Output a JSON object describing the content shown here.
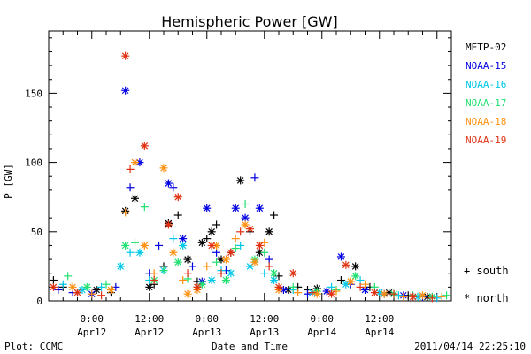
{
  "chart_data": {
    "type": "scatter",
    "title": "Hemispheric Power [GW]",
    "xlabel": "Date and Time",
    "ylabel": "P [GW]",
    "ylim": [
      0,
      195
    ],
    "xlim": [
      -9,
      75
    ],
    "yticks": [
      0,
      50,
      100,
      150
    ],
    "xticks": [
      {
        "x": 0,
        "time": "0:00",
        "date": "Apr12"
      },
      {
        "x": 12,
        "time": "12:00",
        "date": "Apr12"
      },
      {
        "x": 24,
        "time": "0:00",
        "date": "Apr13"
      },
      {
        "x": 36,
        "time": "12:00",
        "date": "Apr13"
      },
      {
        "x": 48,
        "time": "0:00",
        "date": "Apr14"
      },
      {
        "x": 60,
        "time": "12:00",
        "date": "Apr14"
      }
    ],
    "x_unit": "hours from 2011-04-12 00:00",
    "legend_position": "right",
    "marker_key": [
      {
        "symbol": "+",
        "label": "south"
      },
      {
        "symbol": "*",
        "label": "north"
      }
    ],
    "series": [
      {
        "name": "METP-02",
        "color": "#000000",
        "points": [
          {
            "x": -8,
            "y": 15,
            "m": "+"
          },
          {
            "x": -6,
            "y": 10,
            "m": "+"
          },
          {
            "x": -3,
            "y": 6,
            "m": "+"
          },
          {
            "x": 1,
            "y": 8,
            "m": "*"
          },
          {
            "x": 4,
            "y": 6,
            "m": "+"
          },
          {
            "x": 7,
            "y": 65,
            "m": "*"
          },
          {
            "x": 9,
            "y": 74,
            "m": "*"
          },
          {
            "x": 12,
            "y": 10,
            "m": "*"
          },
          {
            "x": 13,
            "y": 12,
            "m": "+"
          },
          {
            "x": 15,
            "y": 25,
            "m": "+"
          },
          {
            "x": 16,
            "y": 56,
            "m": "*"
          },
          {
            "x": 18,
            "y": 62,
            "m": "+"
          },
          {
            "x": 20,
            "y": 30,
            "m": "*"
          },
          {
            "x": 22,
            "y": 14,
            "m": "+"
          },
          {
            "x": 23,
            "y": 42,
            "m": "*"
          },
          {
            "x": 24,
            "y": 45,
            "m": "+"
          },
          {
            "x": 25,
            "y": 50,
            "m": "*"
          },
          {
            "x": 26,
            "y": 55,
            "m": "+"
          },
          {
            "x": 27,
            "y": 30,
            "m": "*"
          },
          {
            "x": 29,
            "y": 35,
            "m": "+"
          },
          {
            "x": 31,
            "y": 87,
            "m": "*"
          },
          {
            "x": 33,
            "y": 50,
            "m": "+"
          },
          {
            "x": 35,
            "y": 35,
            "m": "*"
          },
          {
            "x": 37,
            "y": 50,
            "m": "*"
          },
          {
            "x": 38,
            "y": 62,
            "m": "+"
          },
          {
            "x": 39,
            "y": 18,
            "m": "+"
          },
          {
            "x": 41,
            "y": 8,
            "m": "*"
          },
          {
            "x": 43,
            "y": 10,
            "m": "+"
          },
          {
            "x": 45,
            "y": 8,
            "m": "+"
          },
          {
            "x": 47,
            "y": 9,
            "m": "*"
          },
          {
            "x": 52,
            "y": 15,
            "m": "+"
          },
          {
            "x": 55,
            "y": 25,
            "m": "*"
          },
          {
            "x": 58,
            "y": 10,
            "m": "+"
          },
          {
            "x": 62,
            "y": 6,
            "m": "*"
          },
          {
            "x": 66,
            "y": 4,
            "m": "+"
          },
          {
            "x": 70,
            "y": 3,
            "m": "*"
          }
        ]
      },
      {
        "name": "NOAA-15",
        "color": "#0000e0",
        "points": [
          {
            "x": -7,
            "y": 8,
            "m": "+"
          },
          {
            "x": -4,
            "y": 6,
            "m": "+"
          },
          {
            "x": 0,
            "y": 5,
            "m": "*"
          },
          {
            "x": 5,
            "y": 10,
            "m": "+"
          },
          {
            "x": 7,
            "y": 152,
            "m": "*"
          },
          {
            "x": 8,
            "y": 82,
            "m": "+"
          },
          {
            "x": 10,
            "y": 100,
            "m": "*"
          },
          {
            "x": 12,
            "y": 20,
            "m": "+"
          },
          {
            "x": 14,
            "y": 40,
            "m": "+"
          },
          {
            "x": 16,
            "y": 85,
            "m": "*"
          },
          {
            "x": 17,
            "y": 82,
            "m": "+"
          },
          {
            "x": 19,
            "y": 45,
            "m": "*"
          },
          {
            "x": 21,
            "y": 25,
            "m": "+"
          },
          {
            "x": 23,
            "y": 14,
            "m": "*"
          },
          {
            "x": 24,
            "y": 67,
            "m": "*"
          },
          {
            "x": 26,
            "y": 35,
            "m": "+"
          },
          {
            "x": 28,
            "y": 22,
            "m": "+"
          },
          {
            "x": 30,
            "y": 67,
            "m": "*"
          },
          {
            "x": 32,
            "y": 60,
            "m": "*"
          },
          {
            "x": 34,
            "y": 89,
            "m": "+"
          },
          {
            "x": 35,
            "y": 67,
            "m": "*"
          },
          {
            "x": 37,
            "y": 30,
            "m": "+"
          },
          {
            "x": 40,
            "y": 8,
            "m": "*"
          },
          {
            "x": 45,
            "y": 5,
            "m": "+"
          },
          {
            "x": 49,
            "y": 7,
            "m": "*"
          },
          {
            "x": 52,
            "y": 32,
            "m": "*"
          },
          {
            "x": 54,
            "y": 12,
            "m": "+"
          },
          {
            "x": 57,
            "y": 8,
            "m": "*"
          },
          {
            "x": 61,
            "y": 5,
            "m": "+"
          },
          {
            "x": 65,
            "y": 4,
            "m": "*"
          },
          {
            "x": 69,
            "y": 3,
            "m": "+"
          }
        ]
      },
      {
        "name": "NOAA-16",
        "color": "#00c8e8",
        "points": [
          {
            "x": -6,
            "y": 12,
            "m": "+"
          },
          {
            "x": -2,
            "y": 8,
            "m": "*"
          },
          {
            "x": 2,
            "y": 10,
            "m": "+"
          },
          {
            "x": 6,
            "y": 25,
            "m": "*"
          },
          {
            "x": 8,
            "y": 35,
            "m": "+"
          },
          {
            "x": 10,
            "y": 35,
            "m": "*"
          },
          {
            "x": 12,
            "y": 15,
            "m": "+"
          },
          {
            "x": 15,
            "y": 22,
            "m": "*"
          },
          {
            "x": 17,
            "y": 45,
            "m": "+"
          },
          {
            "x": 19,
            "y": 40,
            "m": "*"
          },
          {
            "x": 22,
            "y": 10,
            "m": "+"
          },
          {
            "x": 25,
            "y": 15,
            "m": "*"
          },
          {
            "x": 27,
            "y": 22,
            "m": "+"
          },
          {
            "x": 29,
            "y": 20,
            "m": "*"
          },
          {
            "x": 31,
            "y": 40,
            "m": "+"
          },
          {
            "x": 33,
            "y": 25,
            "m": "*"
          },
          {
            "x": 36,
            "y": 20,
            "m": "+"
          },
          {
            "x": 38,
            "y": 15,
            "m": "*"
          },
          {
            "x": 42,
            "y": 8,
            "m": "+"
          },
          {
            "x": 46,
            "y": 6,
            "m": "*"
          },
          {
            "x": 50,
            "y": 10,
            "m": "+"
          },
          {
            "x": 53,
            "y": 12,
            "m": "*"
          },
          {
            "x": 56,
            "y": 15,
            "m": "+"
          },
          {
            "x": 60,
            "y": 6,
            "m": "*"
          },
          {
            "x": 64,
            "y": 4,
            "m": "+"
          },
          {
            "x": 68,
            "y": 3,
            "m": "*"
          },
          {
            "x": 72,
            "y": 2,
            "m": "+"
          }
        ]
      },
      {
        "name": "NOAA-17",
        "color": "#20e070",
        "points": [
          {
            "x": -5,
            "y": 18,
            "m": "+"
          },
          {
            "x": -1,
            "y": 10,
            "m": "*"
          },
          {
            "x": 3,
            "y": 12,
            "m": "+"
          },
          {
            "x": 7,
            "y": 40,
            "m": "*"
          },
          {
            "x": 9,
            "y": 42,
            "m": "+"
          },
          {
            "x": 11,
            "y": 68,
            "m": "+"
          },
          {
            "x": 13,
            "y": 15,
            "m": "*"
          },
          {
            "x": 15,
            "y": 22,
            "m": "+"
          },
          {
            "x": 18,
            "y": 28,
            "m": "*"
          },
          {
            "x": 20,
            "y": 16,
            "m": "+"
          },
          {
            "x": 23,
            "y": 12,
            "m": "*"
          },
          {
            "x": 26,
            "y": 28,
            "m": "+"
          },
          {
            "x": 28,
            "y": 15,
            "m": "*"
          },
          {
            "x": 30,
            "y": 38,
            "m": "+"
          },
          {
            "x": 32,
            "y": 70,
            "m": "+"
          },
          {
            "x": 34,
            "y": 30,
            "m": "*"
          },
          {
            "x": 36,
            "y": 35,
            "m": "+"
          },
          {
            "x": 38,
            "y": 20,
            "m": "*"
          },
          {
            "x": 42,
            "y": 10,
            "m": "+"
          },
          {
            "x": 47,
            "y": 7,
            "m": "*"
          },
          {
            "x": 51,
            "y": 8,
            "m": "+"
          },
          {
            "x": 55,
            "y": 18,
            "m": "*"
          },
          {
            "x": 59,
            "y": 10,
            "m": "+"
          },
          {
            "x": 63,
            "y": 5,
            "m": "*"
          },
          {
            "x": 67,
            "y": 4,
            "m": "+"
          },
          {
            "x": 71,
            "y": 3,
            "m": "*"
          },
          {
            "x": 74,
            "y": 4,
            "m": "+"
          }
        ]
      },
      {
        "name": "NOAA-18",
        "color": "#ff9010",
        "points": [
          {
            "x": -4,
            "y": 10,
            "m": "*"
          },
          {
            "x": 0,
            "y": 5,
            "m": "+"
          },
          {
            "x": 4,
            "y": 8,
            "m": "*"
          },
          {
            "x": 7,
            "y": 64,
            "m": "+"
          },
          {
            "x": 9,
            "y": 100,
            "m": "*"
          },
          {
            "x": 11,
            "y": 40,
            "m": "*"
          },
          {
            "x": 13,
            "y": 20,
            "m": "+"
          },
          {
            "x": 15,
            "y": 96,
            "m": "*"
          },
          {
            "x": 17,
            "y": 35,
            "m": "*"
          },
          {
            "x": 19,
            "y": 15,
            "m": "+"
          },
          {
            "x": 20,
            "y": 5,
            "m": "*"
          },
          {
            "x": 22,
            "y": 8,
            "m": "*"
          },
          {
            "x": 24,
            "y": 25,
            "m": "+"
          },
          {
            "x": 26,
            "y": 40,
            "m": "*"
          },
          {
            "x": 28,
            "y": 30,
            "m": "*"
          },
          {
            "x": 30,
            "y": 45,
            "m": "+"
          },
          {
            "x": 32,
            "y": 55,
            "m": "*"
          },
          {
            "x": 34,
            "y": 28,
            "m": "*"
          },
          {
            "x": 36,
            "y": 42,
            "m": "+"
          },
          {
            "x": 39,
            "y": 8,
            "m": "*"
          },
          {
            "x": 43,
            "y": 6,
            "m": "+"
          },
          {
            "x": 47,
            "y": 5,
            "m": "*"
          },
          {
            "x": 51,
            "y": 7,
            "m": "+"
          },
          {
            "x": 54,
            "y": 14,
            "m": "*"
          },
          {
            "x": 57,
            "y": 12,
            "m": "+"
          },
          {
            "x": 61,
            "y": 5,
            "m": "*"
          },
          {
            "x": 65,
            "y": 3,
            "m": "+"
          },
          {
            "x": 69,
            "y": 4,
            "m": "*"
          },
          {
            "x": 73,
            "y": 3,
            "m": "+"
          }
        ]
      },
      {
        "name": "NOAA-19",
        "color": "#e03010",
        "points": [
          {
            "x": -8,
            "y": 10,
            "m": "*"
          },
          {
            "x": -3,
            "y": 6,
            "m": "*"
          },
          {
            "x": 2,
            "y": 4,
            "m": "+"
          },
          {
            "x": 7,
            "y": 177,
            "m": "*"
          },
          {
            "x": 8,
            "y": 95,
            "m": "+"
          },
          {
            "x": 11,
            "y": 112,
            "m": "*"
          },
          {
            "x": 13,
            "y": 15,
            "m": "+"
          },
          {
            "x": 16,
            "y": 55,
            "m": "*"
          },
          {
            "x": 18,
            "y": 75,
            "m": "*"
          },
          {
            "x": 20,
            "y": 20,
            "m": "+"
          },
          {
            "x": 22,
            "y": 10,
            "m": "*"
          },
          {
            "x": 25,
            "y": 40,
            "m": "*"
          },
          {
            "x": 27,
            "y": 20,
            "m": "+"
          },
          {
            "x": 29,
            "y": 35,
            "m": "*"
          },
          {
            "x": 31,
            "y": 50,
            "m": "+"
          },
          {
            "x": 33,
            "y": 52,
            "m": "*"
          },
          {
            "x": 35,
            "y": 40,
            "m": "*"
          },
          {
            "x": 37,
            "y": 25,
            "m": "+"
          },
          {
            "x": 39,
            "y": 10,
            "m": "*"
          },
          {
            "x": 42,
            "y": 20,
            "m": "*"
          },
          {
            "x": 46,
            "y": 6,
            "m": "+"
          },
          {
            "x": 50,
            "y": 5,
            "m": "*"
          },
          {
            "x": 53,
            "y": 26,
            "m": "*"
          },
          {
            "x": 56,
            "y": 10,
            "m": "+"
          },
          {
            "x": 59,
            "y": 6,
            "m": "*"
          },
          {
            "x": 63,
            "y": 5,
            "m": "+"
          },
          {
            "x": 67,
            "y": 3,
            "m": "*"
          },
          {
            "x": 71,
            "y": 2,
            "m": "+"
          }
        ]
      }
    ],
    "footer": {
      "left": "Plot: CCMC",
      "right": "2011/04/14 22:25:10"
    }
  }
}
